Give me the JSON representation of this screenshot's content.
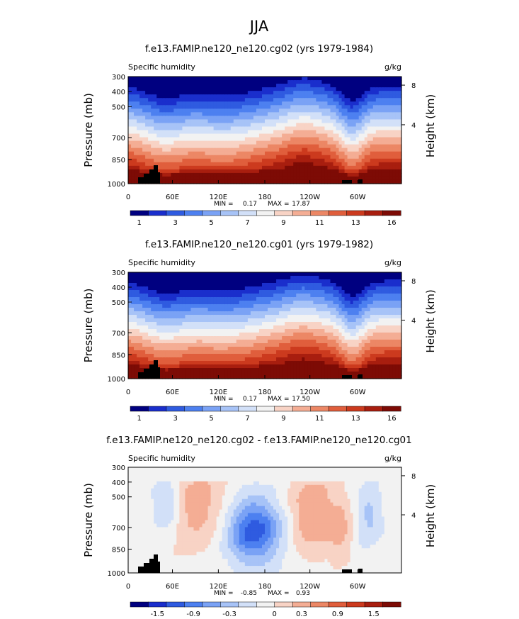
{
  "figure": {
    "title": "JJA"
  },
  "chart_data": [
    {
      "type": "heatmap",
      "title": "f.e13.FAMIP.ne120_ne120.cg02 (yrs 1979-1984)",
      "left_label": "Specific humidity",
      "right_label": "g/kg",
      "ylabel": "Pressure (mb)",
      "y2label": "Height (km)",
      "y_ticks": [
        "300",
        "400",
        "500",
        "700",
        "850",
        "1000"
      ],
      "y2_ticks": [
        "8",
        "4"
      ],
      "x_ticks": [
        "0",
        "60E",
        "120E",
        "180",
        "120W",
        "60W"
      ],
      "min_label": "MIN =",
      "min_value": "0.17",
      "max_label": "MAX =",
      "max_value": "17.87",
      "colorbar_labels": [
        "1",
        "3",
        "5",
        "7",
        "9",
        "11",
        "13",
        "16"
      ],
      "colors": [
        "#000080",
        "#1a2ecc",
        "#2f5be0",
        "#4d80f0",
        "#7aa2f5",
        "#a7c3f7",
        "#d2e0f8",
        "#f2f2f2",
        "#f8d3c5",
        "#f4ad94",
        "#ec8765",
        "#e05e3c",
        "#cc3a1e",
        "#a81e0f",
        "#7d0b05"
      ]
    },
    {
      "type": "heatmap",
      "title": "f.e13.FAMIP.ne120_ne120.cg01 (yrs 1979-1982)",
      "left_label": "Specific humidity",
      "right_label": "g/kg",
      "ylabel": "Pressure (mb)",
      "y2label": "Height (km)",
      "y_ticks": [
        "300",
        "400",
        "500",
        "700",
        "850",
        "1000"
      ],
      "y2_ticks": [
        "8",
        "4"
      ],
      "x_ticks": [
        "0",
        "60E",
        "120E",
        "180",
        "120W",
        "60W"
      ],
      "min_label": "MIN =",
      "min_value": "0.17",
      "max_label": "MAX =",
      "max_value": "17.50",
      "colorbar_labels": [
        "1",
        "3",
        "5",
        "7",
        "9",
        "11",
        "13",
        "16"
      ],
      "colors": [
        "#000080",
        "#1a2ecc",
        "#2f5be0",
        "#4d80f0",
        "#7aa2f5",
        "#a7c3f7",
        "#d2e0f8",
        "#f2f2f2",
        "#f8d3c5",
        "#f4ad94",
        "#ec8765",
        "#e05e3c",
        "#cc3a1e",
        "#a81e0f",
        "#7d0b05"
      ]
    },
    {
      "type": "heatmap",
      "title": "f.e13.FAMIP.ne120_ne120.cg02 - f.e13.FAMIP.ne120_ne120.cg01",
      "left_label": "Specific humidity",
      "right_label": "g/kg",
      "ylabel": "Pressure (mb)",
      "y2label": "Height (km)",
      "y_ticks": [
        "300",
        "400",
        "500",
        "700",
        "850",
        "1000"
      ],
      "y2_ticks": [
        "8",
        "4"
      ],
      "x_ticks": [
        "0",
        "60E",
        "120E",
        "180",
        "120W",
        "60W"
      ],
      "min_label": "MIN =",
      "min_value": "-0.85",
      "max_label": "MAX =",
      "max_value": "0.93",
      "colorbar_labels": [
        "-1.5",
        "-0.9",
        "-0.3",
        "0",
        "0.3",
        "0.9",
        "1.5"
      ],
      "colors": [
        "#000080",
        "#1a2ecc",
        "#2f5be0",
        "#4d80f0",
        "#7aa2f5",
        "#a7c3f7",
        "#d2e0f8",
        "#f2f2f2",
        "#f8d3c5",
        "#f4ad94",
        "#ec8765",
        "#e05e3c",
        "#cc3a1e",
        "#a81e0f",
        "#7d0b05"
      ]
    }
  ]
}
